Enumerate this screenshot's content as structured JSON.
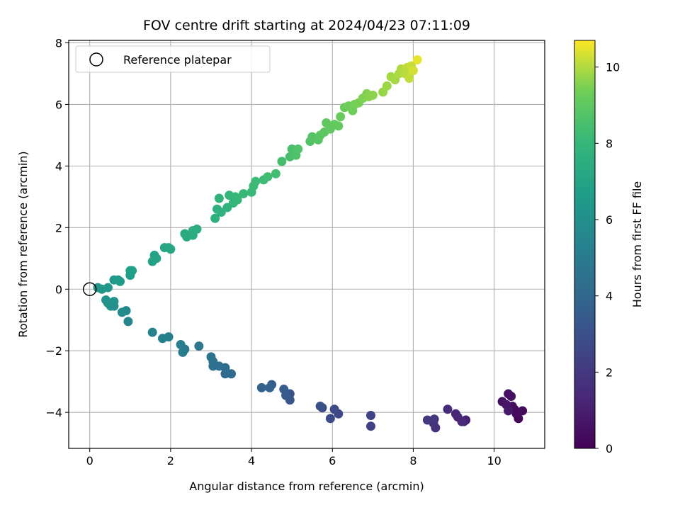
{
  "chart_data": {
    "type": "scatter",
    "title": "FOV centre drift starting at 2024/04/23 07:11:09",
    "xlabel": "Angular distance from reference (arcmin)",
    "ylabel": "Rotation from reference (arcmin)",
    "xlim": [
      -0.52,
      11.25
    ],
    "ylim": [
      -5.17,
      8.08
    ],
    "xticks": [
      0,
      2,
      4,
      6,
      8,
      10
    ],
    "yticks": [
      -4,
      -2,
      0,
      2,
      4,
      6,
      8
    ],
    "grid": true,
    "legend": {
      "placement": "upper-left",
      "entries": [
        "Reference platepar"
      ]
    },
    "reference_point": {
      "x": 0,
      "y": 0
    },
    "colorbar": {
      "label": "Hours from first FF file",
      "colormap": "viridis",
      "range": [
        0,
        10.7
      ],
      "ticks": [
        0,
        2,
        4,
        6,
        8,
        10
      ]
    },
    "points": [
      {
        "x": 10.5,
        "y": -3.9,
        "c": 0.1
      },
      {
        "x": 10.6,
        "y": -4.2,
        "c": 0.2
      },
      {
        "x": 10.55,
        "y": -4.05,
        "c": 0.3
      },
      {
        "x": 10.7,
        "y": -3.95,
        "c": 0.35
      },
      {
        "x": 10.45,
        "y": -3.8,
        "c": 0.4
      },
      {
        "x": 10.35,
        "y": -3.4,
        "c": 0.5
      },
      {
        "x": 10.42,
        "y": -3.48,
        "c": 0.55
      },
      {
        "x": 10.2,
        "y": -3.65,
        "c": 0.6
      },
      {
        "x": 10.3,
        "y": -3.75,
        "c": 0.7
      },
      {
        "x": 10.35,
        "y": -3.95,
        "c": 0.8
      },
      {
        "x": 9.25,
        "y": -4.3,
        "c": 1.0
      },
      {
        "x": 9.3,
        "y": -4.25,
        "c": 1.1
      },
      {
        "x": 9.1,
        "y": -4.15,
        "c": 1.2
      },
      {
        "x": 9.05,
        "y": -4.05,
        "c": 1.3
      },
      {
        "x": 9.2,
        "y": -4.3,
        "c": 1.4
      },
      {
        "x": 8.85,
        "y": -3.9,
        "c": 1.5
      },
      {
        "x": 8.55,
        "y": -4.5,
        "c": 1.7
      },
      {
        "x": 8.5,
        "y": -4.35,
        "c": 1.8
      },
      {
        "x": 8.52,
        "y": -4.22,
        "c": 1.9
      },
      {
        "x": 8.35,
        "y": -4.25,
        "c": 2.0
      },
      {
        "x": 6.95,
        "y": -4.45,
        "c": 2.3
      },
      {
        "x": 6.95,
        "y": -4.1,
        "c": 2.4
      },
      {
        "x": 6.15,
        "y": -4.05,
        "c": 2.6
      },
      {
        "x": 5.95,
        "y": -4.2,
        "c": 2.7
      },
      {
        "x": 6.05,
        "y": -3.9,
        "c": 2.8
      },
      {
        "x": 5.75,
        "y": -3.85,
        "c": 2.9
      },
      {
        "x": 5.7,
        "y": -3.8,
        "c": 3.0
      },
      {
        "x": 4.95,
        "y": -3.4,
        "c": 3.2
      },
      {
        "x": 4.95,
        "y": -3.6,
        "c": 3.3
      },
      {
        "x": 4.85,
        "y": -3.45,
        "c": 3.4
      },
      {
        "x": 4.8,
        "y": -3.25,
        "c": 3.5
      },
      {
        "x": 4.5,
        "y": -3.1,
        "c": 3.6
      },
      {
        "x": 4.45,
        "y": -3.2,
        "c": 3.7
      },
      {
        "x": 4.25,
        "y": -3.2,
        "c": 3.8
      },
      {
        "x": 3.5,
        "y": -2.75,
        "c": 4.0
      },
      {
        "x": 3.35,
        "y": -2.75,
        "c": 4.1
      },
      {
        "x": 3.35,
        "y": -2.55,
        "c": 4.2
      },
      {
        "x": 3.2,
        "y": -2.5,
        "c": 4.3
      },
      {
        "x": 3.05,
        "y": -2.5,
        "c": 4.4
      },
      {
        "x": 3.05,
        "y": -2.35,
        "c": 4.5
      },
      {
        "x": 3.0,
        "y": -2.2,
        "c": 4.6
      },
      {
        "x": 2.7,
        "y": -1.85,
        "c": 4.8
      },
      {
        "x": 2.35,
        "y": -1.95,
        "c": 4.9
      },
      {
        "x": 2.3,
        "y": -2.05,
        "c": 5.0
      },
      {
        "x": 2.25,
        "y": -1.8,
        "c": 5.1
      },
      {
        "x": 1.95,
        "y": -1.55,
        "c": 5.2
      },
      {
        "x": 1.8,
        "y": -1.6,
        "c": 5.3
      },
      {
        "x": 1.55,
        "y": -1.4,
        "c": 5.4
      },
      {
        "x": 0.95,
        "y": -1.05,
        "c": 5.6
      },
      {
        "x": 0.9,
        "y": -0.7,
        "c": 5.7
      },
      {
        "x": 0.8,
        "y": -0.75,
        "c": 5.8
      },
      {
        "x": 0.6,
        "y": -0.55,
        "c": 5.9
      },
      {
        "x": 0.52,
        "y": -0.55,
        "c": 6.0
      },
      {
        "x": 0.6,
        "y": -0.4,
        "c": 6.05
      },
      {
        "x": 0.45,
        "y": -0.45,
        "c": 6.1
      },
      {
        "x": 0.4,
        "y": -0.35,
        "c": 6.2
      },
      {
        "x": 0.2,
        "y": 0.05,
        "c": 6.3
      },
      {
        "x": 0.3,
        "y": 0.0,
        "c": 6.35
      },
      {
        "x": 0.45,
        "y": 0.05,
        "c": 6.4
      },
      {
        "x": 0.6,
        "y": 0.3,
        "c": 6.5
      },
      {
        "x": 0.7,
        "y": 0.3,
        "c": 6.55
      },
      {
        "x": 0.75,
        "y": 0.25,
        "c": 6.6
      },
      {
        "x": 1.0,
        "y": 0.45,
        "c": 6.7
      },
      {
        "x": 1.0,
        "y": 0.6,
        "c": 6.75
      },
      {
        "x": 1.05,
        "y": 0.6,
        "c": 6.8
      },
      {
        "x": 1.55,
        "y": 0.9,
        "c": 6.9
      },
      {
        "x": 1.6,
        "y": 1.1,
        "c": 6.95
      },
      {
        "x": 1.65,
        "y": 1.0,
        "c": 7.0
      },
      {
        "x": 1.85,
        "y": 1.35,
        "c": 7.1
      },
      {
        "x": 1.95,
        "y": 1.35,
        "c": 7.15
      },
      {
        "x": 2.0,
        "y": 1.3,
        "c": 7.2
      },
      {
        "x": 2.35,
        "y": 1.8,
        "c": 7.3
      },
      {
        "x": 2.4,
        "y": 1.7,
        "c": 7.35
      },
      {
        "x": 2.55,
        "y": 1.75,
        "c": 7.4
      },
      {
        "x": 2.55,
        "y": 1.9,
        "c": 7.45
      },
      {
        "x": 2.65,
        "y": 1.95,
        "c": 7.5
      },
      {
        "x": 3.1,
        "y": 2.3,
        "c": 7.6
      },
      {
        "x": 3.15,
        "y": 2.6,
        "c": 7.65
      },
      {
        "x": 3.25,
        "y": 2.5,
        "c": 7.7
      },
      {
        "x": 3.2,
        "y": 2.95,
        "c": 7.75
      },
      {
        "x": 3.4,
        "y": 2.65,
        "c": 7.8
      },
      {
        "x": 3.45,
        "y": 3.05,
        "c": 7.85
      },
      {
        "x": 3.55,
        "y": 2.8,
        "c": 7.9
      },
      {
        "x": 3.65,
        "y": 2.9,
        "c": 7.95
      },
      {
        "x": 3.6,
        "y": 3.0,
        "c": 8.0
      },
      {
        "x": 3.8,
        "y": 3.1,
        "c": 8.05
      },
      {
        "x": 4.0,
        "y": 3.15,
        "c": 8.1
      },
      {
        "x": 4.05,
        "y": 3.35,
        "c": 8.15
      },
      {
        "x": 4.1,
        "y": 3.5,
        "c": 8.2
      },
      {
        "x": 4.3,
        "y": 3.55,
        "c": 8.25
      },
      {
        "x": 4.4,
        "y": 3.65,
        "c": 8.3
      },
      {
        "x": 4.6,
        "y": 3.75,
        "c": 8.35
      },
      {
        "x": 4.75,
        "y": 4.15,
        "c": 8.45
      },
      {
        "x": 4.95,
        "y": 4.3,
        "c": 8.5
      },
      {
        "x": 5.0,
        "y": 4.55,
        "c": 8.55
      },
      {
        "x": 5.1,
        "y": 4.35,
        "c": 8.6
      },
      {
        "x": 5.15,
        "y": 4.55,
        "c": 8.65
      },
      {
        "x": 5.45,
        "y": 4.8,
        "c": 8.75
      },
      {
        "x": 5.5,
        "y": 4.95,
        "c": 8.8
      },
      {
        "x": 5.65,
        "y": 4.85,
        "c": 8.85
      },
      {
        "x": 5.7,
        "y": 5.0,
        "c": 8.9
      },
      {
        "x": 5.8,
        "y": 5.1,
        "c": 8.95
      },
      {
        "x": 5.85,
        "y": 5.4,
        "c": 9.0
      },
      {
        "x": 5.95,
        "y": 5.2,
        "c": 9.05
      },
      {
        "x": 6.05,
        "y": 5.35,
        "c": 9.1
      },
      {
        "x": 6.15,
        "y": 5.3,
        "c": 9.15
      },
      {
        "x": 6.2,
        "y": 5.6,
        "c": 9.2
      },
      {
        "x": 6.3,
        "y": 5.9,
        "c": 9.25
      },
      {
        "x": 6.4,
        "y": 5.95,
        "c": 9.3
      },
      {
        "x": 6.5,
        "y": 5.8,
        "c": 9.35
      },
      {
        "x": 6.55,
        "y": 6.0,
        "c": 9.4
      },
      {
        "x": 6.65,
        "y": 6.05,
        "c": 9.45
      },
      {
        "x": 6.75,
        "y": 6.2,
        "c": 9.5
      },
      {
        "x": 6.85,
        "y": 6.35,
        "c": 9.55
      },
      {
        "x": 6.9,
        "y": 6.25,
        "c": 9.6
      },
      {
        "x": 7.0,
        "y": 6.3,
        "c": 9.65
      },
      {
        "x": 7.25,
        "y": 6.4,
        "c": 9.75
      },
      {
        "x": 7.35,
        "y": 6.6,
        "c": 9.8
      },
      {
        "x": 7.45,
        "y": 6.9,
        "c": 9.85
      },
      {
        "x": 7.55,
        "y": 6.8,
        "c": 9.9
      },
      {
        "x": 7.65,
        "y": 7.0,
        "c": 9.95
      },
      {
        "x": 7.7,
        "y": 7.15,
        "c": 10.0
      },
      {
        "x": 7.8,
        "y": 7.0,
        "c": 10.05
      },
      {
        "x": 7.85,
        "y": 7.2,
        "c": 10.1
      },
      {
        "x": 7.9,
        "y": 6.85,
        "c": 10.15
      },
      {
        "x": 7.95,
        "y": 7.25,
        "c": 10.2
      },
      {
        "x": 8.0,
        "y": 7.1,
        "c": 10.3
      },
      {
        "x": 8.1,
        "y": 7.45,
        "c": 10.5
      }
    ]
  }
}
